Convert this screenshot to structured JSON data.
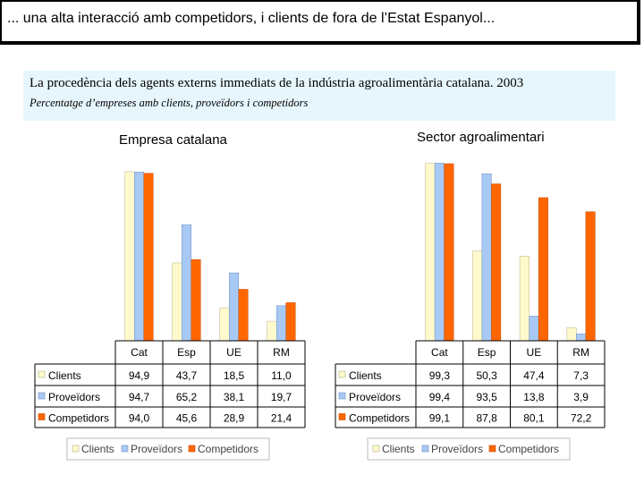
{
  "header": {
    "text": "... una alta interacció amb competidors, i clients de fora de l’Estat Espanyol..."
  },
  "subtitle": {
    "title": "La procedència dels agents externs immediats de la indústria agroalimentària catalana. 2003",
    "note": "Percentatge d’empreses amb clients, proveïdors i competidors"
  },
  "colors": {
    "clients": "#fffacd",
    "proveidors": "#a9c9f5",
    "competidors": "#ff6600"
  },
  "chart_data": [
    {
      "type": "bar",
      "title": "Empresa catalana",
      "categories": [
        "Cat",
        "Esp",
        "UE",
        "RM"
      ],
      "series": [
        {
          "name": "Clients",
          "values": [
            94.9,
            43.7,
            18.5,
            11.0
          ],
          "labels": [
            "94,9",
            "43,7",
            "18,5",
            "11,0"
          ]
        },
        {
          "name": "Proveïdors",
          "values": [
            94.7,
            65.2,
            38.1,
            19.7
          ],
          "labels": [
            "94,7",
            "65,2",
            "38,1",
            "19,7"
          ]
        },
        {
          "name": "Competidors",
          "values": [
            94.0,
            45.6,
            28.9,
            21.4
          ],
          "labels": [
            "94,0",
            "45,6",
            "28,9",
            "21,4"
          ]
        }
      ],
      "ylim": [
        0,
        100
      ],
      "legend": [
        "Clients",
        "Proveïdors",
        "Competidors"
      ]
    },
    {
      "type": "bar",
      "title": "Sector agroalimentari",
      "categories": [
        "Cat",
        "Esp",
        "UE",
        "RM"
      ],
      "series": [
        {
          "name": "Clients",
          "values": [
            99.3,
            50.3,
            47.4,
            7.3
          ],
          "labels": [
            "99,3",
            "50,3",
            "47,4",
            "7,3"
          ]
        },
        {
          "name": "Proveïdors",
          "values": [
            99.4,
            93.5,
            13.8,
            3.9
          ],
          "labels": [
            "99,4",
            "93,5",
            "13,8",
            "3,9"
          ]
        },
        {
          "name": "Competidors",
          "values": [
            99.1,
            87.8,
            80.1,
            72.2
          ],
          "labels": [
            "99,1",
            "87,8",
            "80,1",
            "72,2"
          ]
        }
      ],
      "ylim": [
        0,
        100
      ],
      "legend": [
        "Clients",
        "Proveïdors",
        "Competidors"
      ]
    }
  ]
}
